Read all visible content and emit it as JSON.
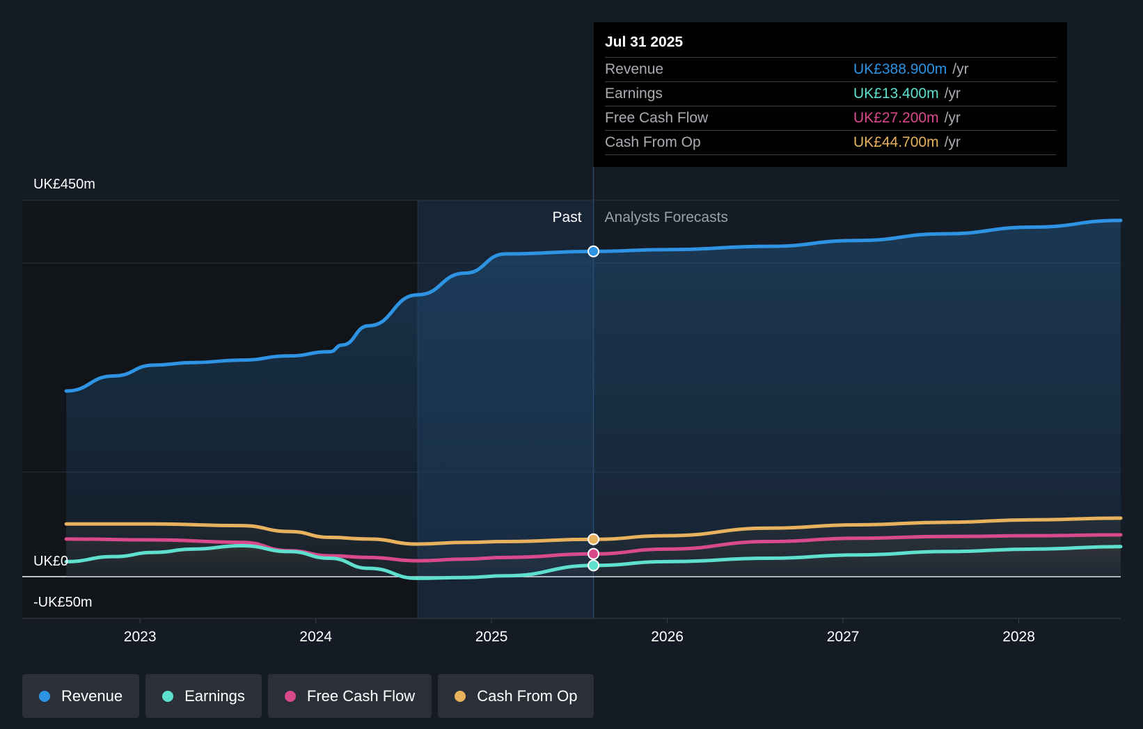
{
  "tooltip": {
    "date": "Jul 31 2025",
    "rows": [
      {
        "label": "Revenue",
        "value": "UK£388.900m",
        "unit": "/yr",
        "color": "#2e93e3"
      },
      {
        "label": "Earnings",
        "value": "UK£13.400m",
        "unit": "/yr",
        "color": "#5fe0cf"
      },
      {
        "label": "Free Cash Flow",
        "value": "UK£27.200m",
        "unit": "/yr",
        "color": "#d94a8c"
      },
      {
        "label": "Cash From Op",
        "value": "UK£44.700m",
        "unit": "/yr",
        "color": "#e8b15e"
      }
    ]
  },
  "legend": [
    {
      "label": "Revenue",
      "color": "#2e93e3"
    },
    {
      "label": "Earnings",
      "color": "#5fe0cf"
    },
    {
      "label": "Free Cash Flow",
      "color": "#d94a8c"
    },
    {
      "label": "Cash From Op",
      "color": "#e8b15e"
    }
  ],
  "chart_data": {
    "type": "line",
    "title": "",
    "y_tick_labels": [
      "UK£450m",
      "UK£0",
      "-UK£50m"
    ],
    "ylim": [
      -50,
      450
    ],
    "x_tick_labels": [
      "2023",
      "2024",
      "2025",
      "2026",
      "2027",
      "2028"
    ],
    "x_ticks": [
      2023.0,
      2024.0,
      2025.0,
      2026.0,
      2027.0,
      2028.0
    ],
    "xlim": [
      2022.33,
      2028.58
    ],
    "past_label": "Past",
    "forecast_label": "Analysts Forecasts",
    "past_start": 2024.58,
    "present": 2025.58,
    "series": [
      {
        "name": "Revenue",
        "color": "#2e93e3",
        "x": [
          2022.58,
          2022.85,
          2023.08,
          2023.3,
          2023.58,
          2023.85,
          2024.08,
          2024.15,
          2024.3,
          2024.58,
          2024.85,
          2025.08,
          2025.58,
          2026.0,
          2026.58,
          2027.08,
          2027.58,
          2028.08,
          2028.58
        ],
        "y": [
          222,
          240,
          253,
          256,
          259,
          264,
          269,
          277,
          300,
          337,
          363,
          386,
          389,
          391,
          395,
          402,
          410,
          418,
          426
        ]
      },
      {
        "name": "Earnings",
        "color": "#5fe0cf",
        "x": [
          2022.58,
          2022.85,
          2023.08,
          2023.3,
          2023.58,
          2023.85,
          2024.08,
          2024.3,
          2024.58,
          2024.85,
          2025.08,
          2025.58,
          2026.0,
          2026.58,
          2027.08,
          2027.58,
          2028.08,
          2028.58
        ],
        "y": [
          18,
          24,
          29,
          33,
          37,
          30,
          22,
          10,
          -2,
          -1,
          1,
          13.4,
          18,
          22,
          26,
          30,
          33,
          36
        ]
      },
      {
        "name": "Free Cash Flow",
        "color": "#d94a8c",
        "x": [
          2022.58,
          2023.08,
          2023.58,
          2023.85,
          2024.08,
          2024.3,
          2024.58,
          2024.85,
          2025.08,
          2025.58,
          2026.0,
          2026.58,
          2027.08,
          2027.58,
          2028.08,
          2028.58
        ],
        "y": [
          45,
          44,
          41,
          31,
          25,
          23,
          19,
          21,
          23,
          27.2,
          33,
          42,
          46,
          48,
          49,
          50
        ]
      },
      {
        "name": "Cash From Op",
        "color": "#e8b15e",
        "x": [
          2022.58,
          2023.08,
          2023.58,
          2023.85,
          2024.08,
          2024.3,
          2024.58,
          2024.85,
          2025.08,
          2025.58,
          2026.0,
          2026.58,
          2027.08,
          2027.58,
          2028.08,
          2028.58
        ],
        "y": [
          63,
          63,
          61,
          54,
          47,
          45,
          39,
          41,
          42,
          44.7,
          49,
          58,
          62,
          65,
          68,
          70
        ]
      }
    ]
  }
}
